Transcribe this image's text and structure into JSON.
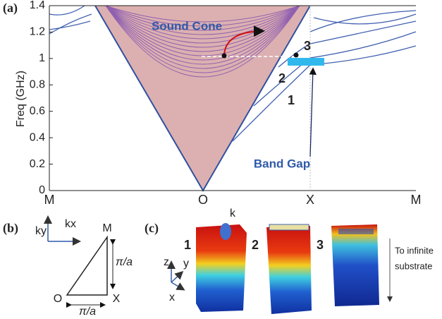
{
  "panel_a": {
    "label": "(a)",
    "y_axis_label": "Freq (GHz)",
    "ylim": [
      0,
      1.4
    ],
    "yticks": [
      0,
      0.2,
      0.4,
      0.6,
      0.8,
      1,
      1.2,
      1.4
    ],
    "x_points": [
      "M",
      "O",
      "X",
      "M"
    ],
    "sound_cone": "Sound Cone",
    "band_gap": "Band Gap",
    "mode_labels": [
      "1",
      "2",
      "3"
    ]
  },
  "panel_b": {
    "label": "(b)",
    "axes": [
      "ky",
      "kx"
    ],
    "vertices": [
      "M",
      "O",
      "X"
    ],
    "edge_labels": [
      "π/a",
      "π/a"
    ]
  },
  "panel_c": {
    "label": "(c)",
    "k_label": "k",
    "axes": [
      "z",
      "y",
      "x"
    ],
    "modes": [
      "1",
      "2",
      "3"
    ],
    "note": [
      "To infinite",
      "substrate"
    ]
  }
}
